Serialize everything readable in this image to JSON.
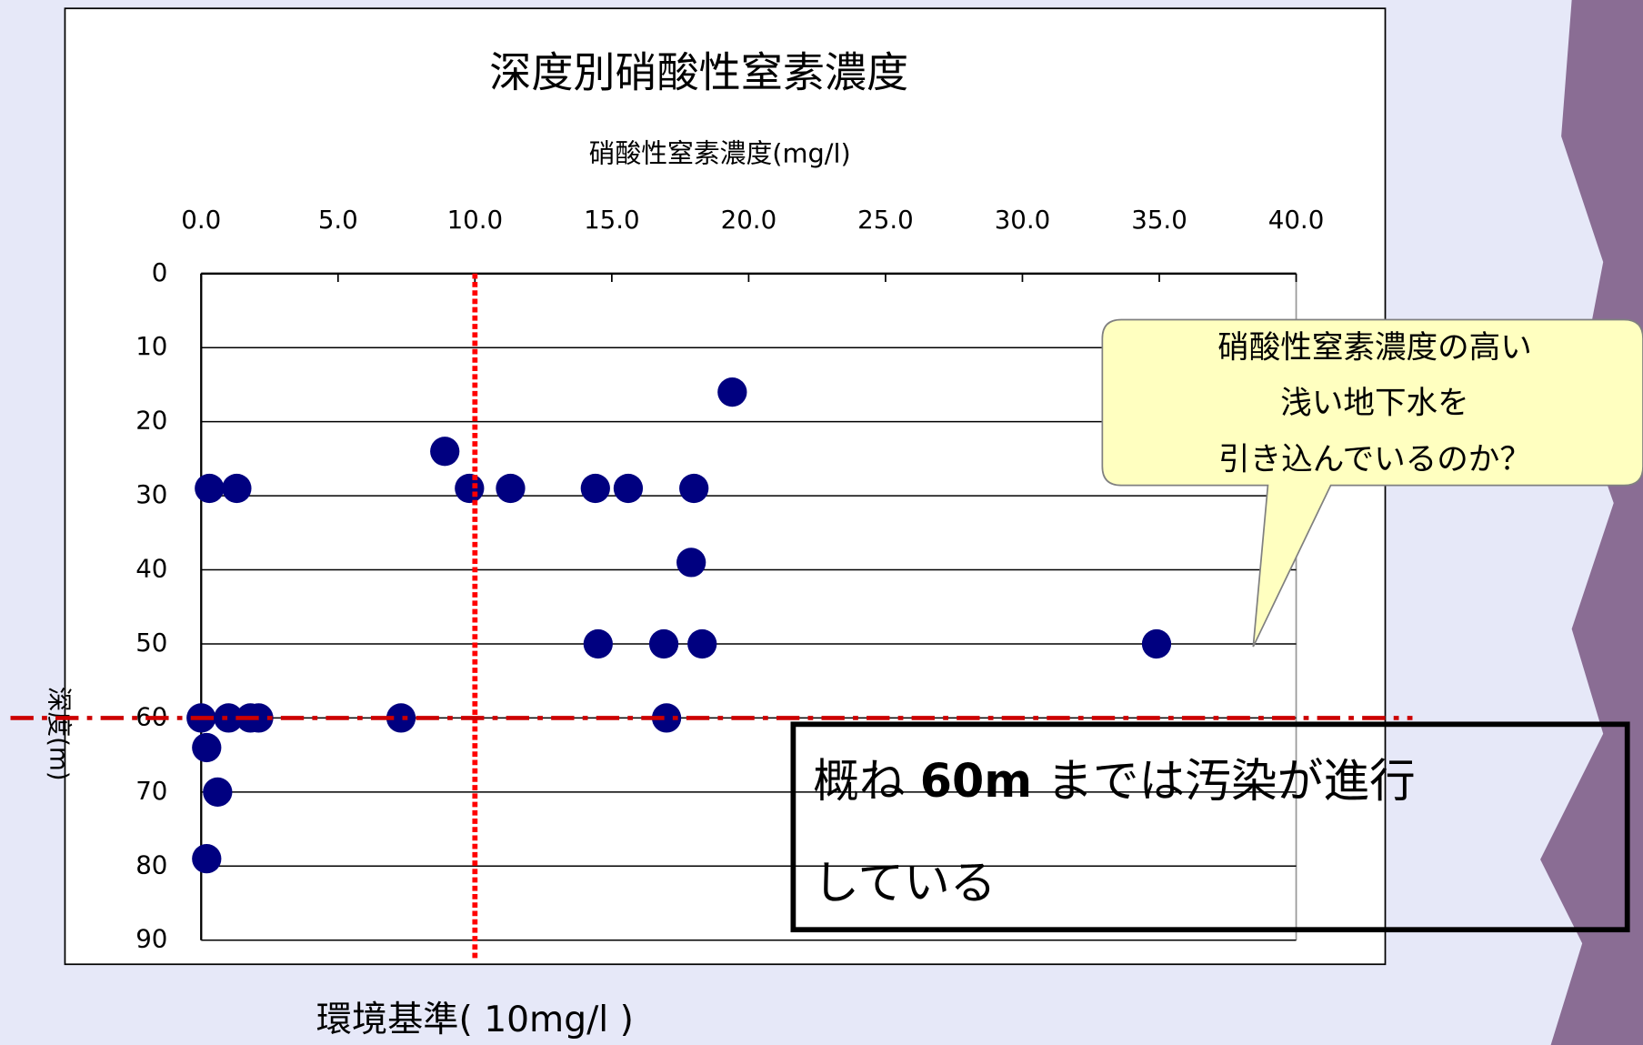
{
  "chart_data": {
    "type": "scatter",
    "title": "深度別硝酸性窒素濃度",
    "x_label": "硝酸性窒素濃度(mg/l)",
    "y_label": "深度(m)",
    "x": [
      19.4,
      8.9,
      0.3,
      1.3,
      9.8,
      11.3,
      14.4,
      15.6,
      18.0,
      17.9,
      14.5,
      16.9,
      18.3,
      34.9,
      0.0,
      1.0,
      1.8,
      2.1,
      7.3,
      17.0,
      0.2,
      0.6,
      0.2
    ],
    "series": [
      {
        "color": "#000080",
        "values": [
          16,
          24,
          29,
          29,
          29,
          29,
          29,
          29,
          29,
          39,
          50,
          50,
          50,
          50,
          60,
          60,
          60,
          60,
          60,
          60,
          64,
          70,
          79
        ]
      }
    ],
    "xlim": [
      0,
      40
    ],
    "xticks": [
      {
        "value": 0,
        "label": "0.0"
      },
      {
        "value": 5,
        "label": "5.0"
      },
      {
        "value": 10,
        "label": "10.0"
      },
      {
        "value": 15,
        "label": "15.0"
      },
      {
        "value": 20,
        "label": "20.0"
      },
      {
        "value": 25,
        "label": "25.0"
      },
      {
        "value": 30,
        "label": "30.0"
      },
      {
        "value": 35,
        "label": "35.0"
      },
      {
        "value": 40,
        "label": "40.0"
      }
    ],
    "ylim": [
      0,
      90
    ],
    "yticks": [
      0,
      10,
      20,
      30,
      40,
      50,
      60,
      70,
      80,
      90
    ],
    "y_inverted": true,
    "x_axis_position": "top",
    "grid": true,
    "reference_lines": [
      {
        "axis": "x",
        "value": 10,
        "color": "#ff0000",
        "label": "環境基準( 10mg/l )"
      },
      {
        "axis": "y",
        "value": 60,
        "color": "#cc0000"
      }
    ],
    "callout": [
      "硝酸性窒素濃度の高い",
      "浅い地下水を",
      "引き込んでいるのか？"
    ],
    "box_note": [
      "概ね ",
      "60m",
      " までは汚染が進行",
      "している"
    ]
  }
}
